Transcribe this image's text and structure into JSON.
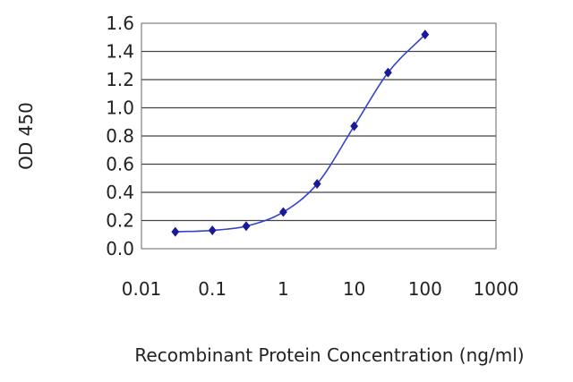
{
  "chart_data": {
    "type": "line",
    "title": "",
    "xlabel": "Recombinant Protein Concentration (ng/ml)",
    "ylabel": "OD 450",
    "x_scale": "log",
    "xlim": [
      0.01,
      1000
    ],
    "ylim": [
      0.0,
      1.6
    ],
    "grid": true,
    "legend": "none",
    "x_ticks": [
      "0.01",
      "0.1",
      "1",
      "10",
      "100",
      "1000"
    ],
    "y_ticks": [
      "0.0",
      "0.2",
      "0.4",
      "0.6",
      "0.8",
      "1.0",
      "1.2",
      "1.4",
      "1.6"
    ],
    "series": [
      {
        "x": [
          0.03,
          0.1,
          0.3,
          1,
          3,
          10,
          30,
          100
        ],
        "y": [
          0.12,
          0.13,
          0.16,
          0.26,
          0.46,
          0.87,
          1.25,
          1.52
        ]
      }
    ],
    "colors": {
      "line": "#3344cc",
      "marker": "#1a1a99",
      "grid": "#444444",
      "frame": "#666666"
    }
  }
}
